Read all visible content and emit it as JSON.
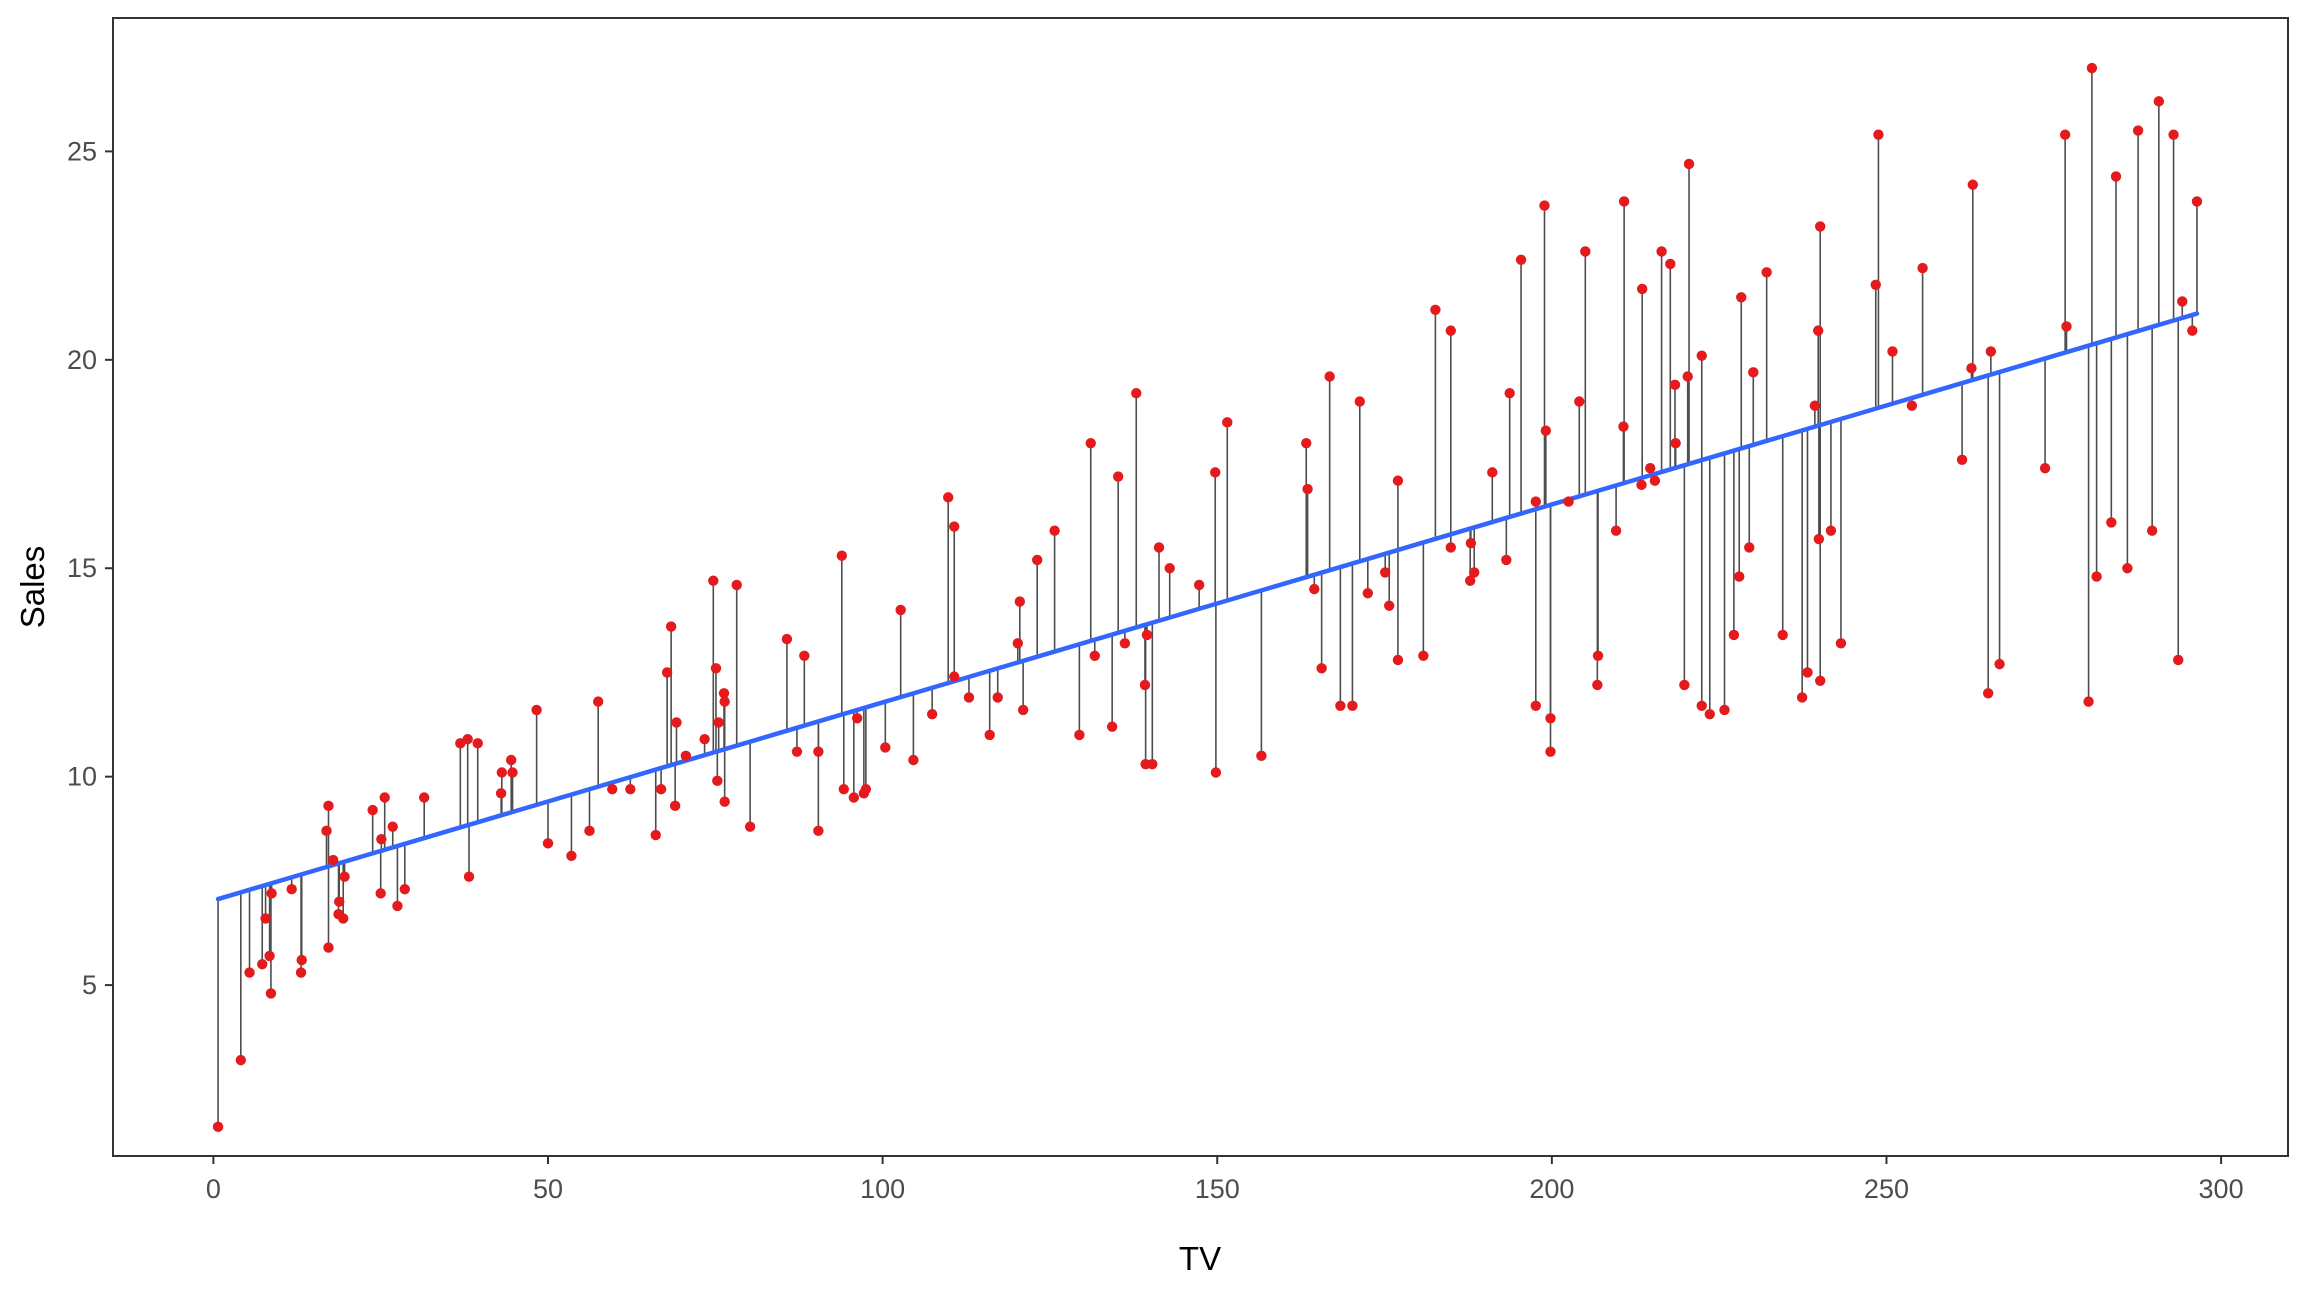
{
  "chart_data": {
    "type": "scatter",
    "xlabel": "TV",
    "ylabel": "Sales",
    "xlim": [
      -15,
      310
    ],
    "ylim": [
      0.9,
      28.2
    ],
    "xticks": [
      0,
      50,
      100,
      150,
      200,
      250,
      300
    ],
    "yticks": [
      5,
      10,
      15,
      20,
      25
    ],
    "grid": false,
    "legend": "none",
    "fit_line": {
      "intercept": 7.03,
      "slope": 0.0475,
      "x_range": [
        0.7,
        296.4
      ],
      "color": "#3366FF"
    },
    "residual_color": "#4d4d4d",
    "point_color": "#E41A1C",
    "points": [
      [
        0.7,
        1.6
      ],
      [
        4.1,
        3.2
      ],
      [
        5.4,
        5.3
      ],
      [
        7.3,
        5.5
      ],
      [
        7.8,
        6.6
      ],
      [
        8.4,
        5.7
      ],
      [
        8.6,
        4.8
      ],
      [
        8.7,
        7.2
      ],
      [
        11.7,
        7.3
      ],
      [
        13.1,
        5.3
      ],
      [
        13.2,
        5.6
      ],
      [
        16.9,
        8.7
      ],
      [
        17.2,
        5.9
      ],
      [
        17.2,
        9.3
      ],
      [
        17.9,
        8.0
      ],
      [
        18.7,
        6.7
      ],
      [
        18.8,
        7.0
      ],
      [
        19.4,
        6.6
      ],
      [
        19.6,
        7.6
      ],
      [
        23.8,
        9.2
      ],
      [
        25.0,
        7.2
      ],
      [
        25.1,
        8.5
      ],
      [
        25.6,
        9.5
      ],
      [
        26.8,
        8.8
      ],
      [
        27.5,
        6.9
      ],
      [
        28.6,
        7.3
      ],
      [
        31.5,
        9.5
      ],
      [
        36.9,
        10.8
      ],
      [
        38.0,
        10.9
      ],
      [
        38.2,
        7.6
      ],
      [
        39.5,
        10.8
      ],
      [
        43.0,
        9.6
      ],
      [
        43.1,
        10.1
      ],
      [
        44.5,
        10.4
      ],
      [
        44.7,
        10.1
      ],
      [
        48.3,
        11.6
      ],
      [
        50.0,
        8.4
      ],
      [
        53.5,
        8.1
      ],
      [
        56.2,
        8.7
      ],
      [
        57.5,
        11.8
      ],
      [
        59.6,
        9.7
      ],
      [
        62.3,
        9.7
      ],
      [
        66.1,
        8.6
      ],
      [
        66.9,
        9.7
      ],
      [
        67.8,
        12.5
      ],
      [
        68.4,
        13.6
      ],
      [
        69.0,
        9.3
      ],
      [
        69.2,
        11.3
      ],
      [
        70.6,
        10.5
      ],
      [
        73.4,
        10.9
      ],
      [
        74.7,
        14.7
      ],
      [
        75.1,
        12.6
      ],
      [
        75.3,
        9.9
      ],
      [
        75.5,
        11.3
      ],
      [
        76.3,
        12.0
      ],
      [
        76.4,
        11.8
      ],
      [
        76.4,
        9.4
      ],
      [
        78.2,
        14.6
      ],
      [
        80.2,
        8.8
      ],
      [
        85.7,
        13.3
      ],
      [
        87.2,
        10.6
      ],
      [
        88.3,
        12.9
      ],
      [
        90.4,
        10.6
      ],
      [
        90.4,
        8.7
      ],
      [
        93.9,
        15.3
      ],
      [
        94.2,
        9.7
      ],
      [
        95.7,
        9.5
      ],
      [
        96.2,
        11.4
      ],
      [
        97.2,
        9.6
      ],
      [
        97.5,
        9.7
      ],
      [
        100.4,
        10.7
      ],
      [
        102.7,
        14.0
      ],
      [
        104.6,
        10.4
      ],
      [
        107.4,
        11.5
      ],
      [
        109.8,
        16.7
      ],
      [
        110.7,
        16.0
      ],
      [
        110.7,
        12.4
      ],
      [
        112.9,
        11.9
      ],
      [
        116.0,
        11.0
      ],
      [
        117.2,
        11.9
      ],
      [
        120.2,
        13.2
      ],
      [
        120.5,
        14.2
      ],
      [
        121.0,
        11.6
      ],
      [
        123.1,
        15.2
      ],
      [
        125.7,
        15.9
      ],
      [
        129.4,
        11.0
      ],
      [
        131.1,
        18.0
      ],
      [
        131.7,
        12.9
      ],
      [
        134.3,
        11.2
      ],
      [
        135.2,
        17.2
      ],
      [
        136.2,
        13.2
      ],
      [
        137.9,
        19.2
      ],
      [
        139.2,
        12.2
      ],
      [
        139.3,
        10.3
      ],
      [
        139.5,
        13.4
      ],
      [
        140.3,
        10.3
      ],
      [
        141.3,
        15.5
      ],
      [
        142.9,
        15.0
      ],
      [
        147.3,
        14.6
      ],
      [
        149.7,
        17.3
      ],
      [
        149.8,
        10.1
      ],
      [
        151.5,
        18.5
      ],
      [
        156.6,
        10.5
      ],
      [
        163.3,
        18.0
      ],
      [
        163.5,
        16.9
      ],
      [
        164.5,
        14.5
      ],
      [
        165.6,
        12.6
      ],
      [
        166.8,
        19.6
      ],
      [
        168.4,
        11.7
      ],
      [
        170.2,
        11.7
      ],
      [
        171.3,
        19.0
      ],
      [
        172.5,
        14.4
      ],
      [
        175.1,
        14.9
      ],
      [
        175.7,
        14.1
      ],
      [
        177.0,
        12.8
      ],
      [
        177.0,
        17.1
      ],
      [
        180.8,
        12.9
      ],
      [
        182.6,
        21.2
      ],
      [
        184.9,
        15.5
      ],
      [
        184.9,
        20.7
      ],
      [
        187.8,
        14.7
      ],
      [
        187.9,
        15.6
      ],
      [
        188.4,
        14.9
      ],
      [
        191.1,
        17.3
      ],
      [
        193.2,
        15.2
      ],
      [
        193.7,
        19.2
      ],
      [
        195.4,
        22.4
      ],
      [
        197.6,
        11.7
      ],
      [
        197.6,
        16.6
      ],
      [
        198.9,
        23.7
      ],
      [
        199.1,
        18.3
      ],
      [
        199.8,
        11.4
      ],
      [
        199.8,
        10.6
      ],
      [
        202.5,
        16.6
      ],
      [
        204.1,
        19.0
      ],
      [
        205.0,
        22.6
      ],
      [
        206.8,
        12.2
      ],
      [
        206.9,
        12.9
      ],
      [
        209.6,
        15.9
      ],
      [
        210.7,
        18.4
      ],
      [
        210.8,
        23.8
      ],
      [
        213.4,
        17.0
      ],
      [
        213.5,
        21.7
      ],
      [
        214.7,
        17.4
      ],
      [
        215.4,
        17.1
      ],
      [
        216.4,
        22.6
      ],
      [
        217.7,
        22.3
      ],
      [
        218.4,
        19.4
      ],
      [
        218.5,
        18.0
      ],
      [
        219.8,
        12.2
      ],
      [
        220.3,
        19.6
      ],
      [
        220.5,
        24.7
      ],
      [
        222.4,
        20.1
      ],
      [
        222.4,
        11.7
      ],
      [
        223.6,
        11.5
      ],
      [
        225.8,
        11.6
      ],
      [
        227.2,
        13.4
      ],
      [
        228.0,
        14.8
      ],
      [
        228.3,
        21.5
      ],
      [
        229.5,
        15.5
      ],
      [
        230.1,
        19.7
      ],
      [
        232.1,
        22.1
      ],
      [
        234.5,
        13.4
      ],
      [
        237.4,
        11.9
      ],
      [
        238.2,
        12.5
      ],
      [
        239.3,
        18.9
      ],
      [
        239.8,
        20.7
      ],
      [
        239.9,
        15.7
      ],
      [
        240.1,
        23.2
      ],
      [
        240.1,
        12.3
      ],
      [
        241.7,
        15.9
      ],
      [
        243.2,
        13.2
      ],
      [
        248.4,
        21.8
      ],
      [
        248.8,
        25.4
      ],
      [
        250.9,
        20.2
      ],
      [
        253.8,
        18.9
      ],
      [
        255.4,
        22.2
      ],
      [
        261.3,
        17.6
      ],
      [
        262.7,
        19.8
      ],
      [
        262.9,
        24.2
      ],
      [
        265.2,
        12.0
      ],
      [
        265.6,
        20.2
      ],
      [
        266.9,
        12.7
      ],
      [
        273.7,
        17.4
      ],
      [
        276.7,
        25.4
      ],
      [
        276.9,
        20.8
      ],
      [
        280.2,
        11.8
      ],
      [
        280.7,
        27.0
      ],
      [
        281.4,
        14.8
      ],
      [
        283.6,
        16.1
      ],
      [
        284.3,
        24.4
      ],
      [
        286.0,
        15.0
      ],
      [
        287.6,
        25.5
      ],
      [
        289.7,
        15.9
      ],
      [
        290.7,
        26.2
      ],
      [
        292.9,
        25.4
      ],
      [
        293.6,
        12.8
      ],
      [
        294.2,
        21.4
      ],
      [
        295.7,
        20.7
      ],
      [
        296.4,
        23.8
      ]
    ]
  }
}
